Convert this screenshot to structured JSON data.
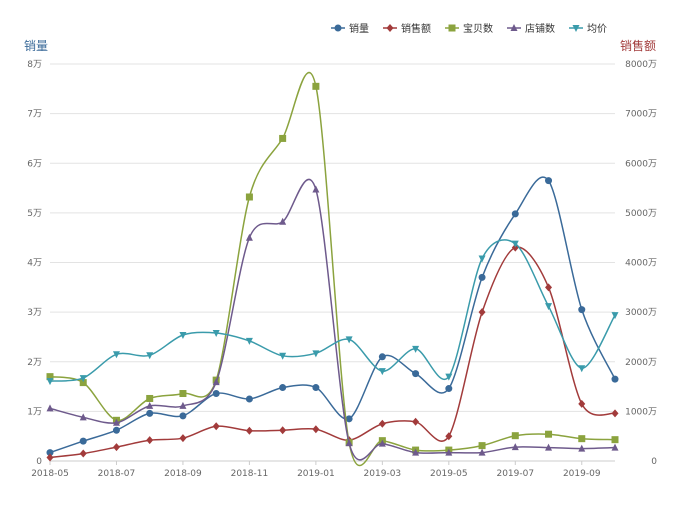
{
  "chart_data": {
    "type": "line",
    "categories": [
      "2018-05",
      "2018-06",
      "2018-07",
      "2018-08",
      "2018-09",
      "2018-10",
      "2018-11",
      "2018-12",
      "2019-01",
      "2019-02",
      "2019-03",
      "2019-04",
      "2019-05",
      "2019-06",
      "2019-07",
      "2019-08",
      "2019-09",
      "2019-10"
    ],
    "x_tick_labels": [
      "2018-05",
      "2018-07",
      "2018-09",
      "2018-11",
      "2019-01",
      "2019-03",
      "2019-05",
      "2019-07",
      "2019-09"
    ],
    "left_axis": {
      "title": "销量",
      "ylim": [
        0,
        80000
      ],
      "ticks": [
        {
          "value": 0,
          "label": "0"
        },
        {
          "value": 10000,
          "label": "1万"
        },
        {
          "value": 20000,
          "label": "2万"
        },
        {
          "value": 30000,
          "label": "3万"
        },
        {
          "value": 40000,
          "label": "4万"
        },
        {
          "value": 50000,
          "label": "5万"
        },
        {
          "value": 60000,
          "label": "6万"
        },
        {
          "value": 70000,
          "label": "7万"
        },
        {
          "value": 80000,
          "label": "8万"
        }
      ]
    },
    "right_axis": {
      "title": "销售额",
      "ylim": [
        0,
        80000000
      ],
      "ticks": [
        {
          "value": 0,
          "label": "0"
        },
        {
          "value": 10000000,
          "label": "1000万"
        },
        {
          "value": 20000000,
          "label": "2000万"
        },
        {
          "value": 30000000,
          "label": "3000万"
        },
        {
          "value": 40000000,
          "label": "4000万"
        },
        {
          "value": 50000000,
          "label": "5000万"
        },
        {
          "value": 60000000,
          "label": "6000万"
        },
        {
          "value": 70000000,
          "label": "7000万"
        },
        {
          "value": 80000000,
          "label": "8000万"
        }
      ]
    },
    "grid": true,
    "legend_position": "top-right",
    "series": [
      {
        "name": "销量",
        "axis": "left",
        "color": "#3a6a99",
        "marker": "circle",
        "values": [
          1700,
          4000,
          6200,
          9600,
          9100,
          13600,
          12500,
          14800,
          14800,
          8500,
          21000,
          17600,
          14600,
          37000,
          49800,
          56500,
          30500,
          16500
        ]
      },
      {
        "name": "销售额",
        "axis": "right",
        "color": "#a23b3b",
        "marker": "diamond",
        "values": [
          700000,
          1500000,
          2800000,
          4200000,
          4600000,
          7000000,
          6100000,
          6200000,
          6400000,
          4200000,
          7500000,
          7900000,
          5000000,
          30000000,
          43000000,
          35000000,
          11500000,
          9600000
        ]
      },
      {
        "name": "宝贝数",
        "axis": "left",
        "color": "#8ba33e",
        "marker": "square",
        "values": [
          17000,
          15800,
          8200,
          12600,
          13600,
          16300,
          53200,
          65000,
          75500,
          3700,
          4100,
          2200,
          2200,
          3100,
          5100,
          5400,
          4500,
          4300
        ]
      },
      {
        "name": "店铺数",
        "axis": "left",
        "color": "#6e5a8c",
        "marker": "triangle-up",
        "values": [
          10600,
          8800,
          7700,
          11100,
          11100,
          15900,
          45000,
          48200,
          54700,
          3600,
          3500,
          1700,
          1700,
          1700,
          2800,
          2700,
          2500,
          2700
        ]
      },
      {
        "name": "均价",
        "axis": "left",
        "color": "#3a9bab",
        "marker": "triangle-down",
        "values": [
          16100,
          16700,
          21500,
          21300,
          25400,
          25800,
          24200,
          21200,
          21700,
          24500,
          18100,
          22600,
          17000,
          40800,
          43800,
          31200,
          18700,
          29400
        ]
      }
    ]
  }
}
